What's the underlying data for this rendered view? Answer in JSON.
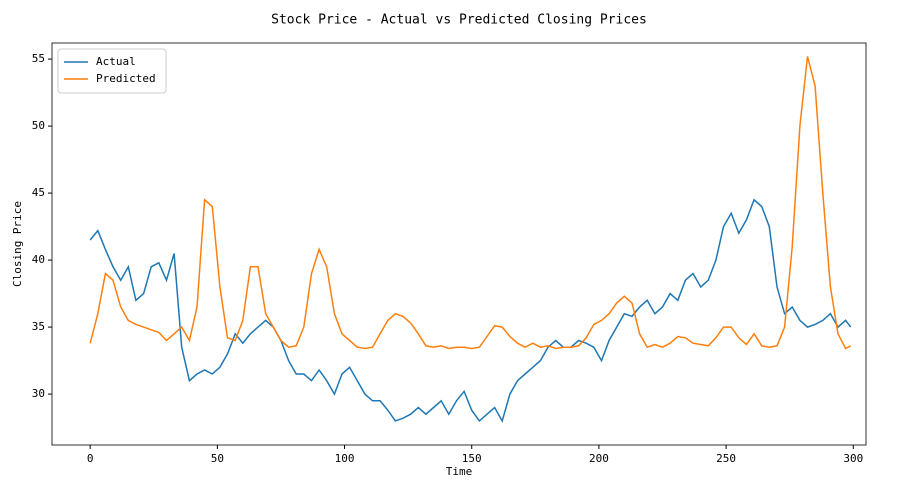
{
  "chart_data": {
    "type": "line",
    "title": "Stock Price - Actual vs Predicted Closing Prices",
    "xlabel": "Time",
    "ylabel": "Closing Price",
    "x": [
      0,
      3,
      6,
      9,
      12,
      15,
      18,
      21,
      24,
      27,
      30,
      33,
      36,
      39,
      42,
      45,
      48,
      51,
      54,
      57,
      60,
      63,
      66,
      69,
      72,
      75,
      78,
      81,
      84,
      87,
      90,
      93,
      96,
      99,
      102,
      105,
      108,
      111,
      114,
      117,
      120,
      123,
      126,
      129,
      132,
      135,
      138,
      141,
      144,
      147,
      150,
      153,
      156,
      159,
      162,
      165,
      168,
      171,
      174,
      177,
      180,
      183,
      186,
      189,
      192,
      195,
      198,
      201,
      204,
      207,
      210,
      213,
      216,
      219,
      222,
      225,
      228,
      231,
      234,
      237,
      240,
      243,
      246,
      249,
      252,
      255,
      258,
      261,
      264,
      267,
      270,
      273,
      276,
      279,
      282,
      285,
      288,
      291,
      294,
      297,
      299
    ],
    "series": [
      {
        "name": "Actual",
        "color": "#1f77b4",
        "values": [
          41.5,
          42.2,
          40.8,
          39.5,
          38.5,
          39.5,
          37,
          37.5,
          39.5,
          39.8,
          38.5,
          40.5,
          33.5,
          31,
          31.5,
          31.8,
          31.5,
          32,
          33,
          34.5,
          33.8,
          34.5,
          35,
          35.5,
          35,
          34,
          32.5,
          31.5,
          31.5,
          31,
          31.8,
          31,
          30,
          31.5,
          32,
          31,
          30,
          29.5,
          29.5,
          28.8,
          28,
          28.2,
          28.5,
          29,
          28.5,
          29,
          29.5,
          28.5,
          29.5,
          30.2,
          28.8,
          28,
          28.5,
          29,
          28,
          30,
          31,
          31.5,
          32,
          32.5,
          33.5,
          34,
          33.5,
          33.5,
          34,
          33.8,
          33.5,
          32.5,
          34,
          35,
          36,
          35.8,
          36.5,
          37,
          36,
          36.5,
          37.5,
          37,
          38.5,
          39,
          38,
          38.5,
          40,
          42.5,
          43.5,
          42,
          43,
          44.5,
          44,
          42.5,
          38,
          36,
          36.5,
          35.5,
          35,
          35.2,
          35.5,
          36,
          35,
          35.5,
          35
        ]
      },
      {
        "name": "Predicted",
        "color": "#ff7f0e",
        "values": [
          33.8,
          36,
          39,
          38.5,
          36.5,
          35.5,
          35.2,
          35,
          34.8,
          34.6,
          34,
          34.5,
          35,
          34,
          36.5,
          44.5,
          44,
          38,
          34.2,
          34,
          35.5,
          39.5,
          39.5,
          36,
          35,
          34,
          33.5,
          33.6,
          35,
          39,
          40.8,
          39.5,
          36,
          34.5,
          34,
          33.5,
          33.4,
          33.5,
          34.5,
          35.5,
          36,
          35.8,
          35.3,
          34.5,
          33.6,
          33.5,
          33.6,
          33.4,
          33.5,
          33.5,
          33.4,
          33.5,
          34.3,
          35.1,
          35,
          34.3,
          33.8,
          33.5,
          33.8,
          33.5,
          33.6,
          33.4,
          33.5,
          33.5,
          33.6,
          34.2,
          35.2,
          35.5,
          36,
          36.8,
          37.3,
          36.8,
          34.5,
          33.5,
          33.7,
          33.5,
          33.8,
          34.3,
          34.2,
          33.8,
          33.7,
          33.6,
          34.2,
          35,
          35,
          34.2,
          33.7,
          34.5,
          33.6,
          33.5,
          33.6,
          35,
          41,
          50,
          55.2,
          53,
          45,
          38,
          34.5,
          33.4,
          33.6
        ]
      }
    ],
    "xlim": [
      -15,
      305
    ],
    "ylim": [
      26.2,
      56.2
    ],
    "xticks": [
      0,
      50,
      100,
      150,
      200,
      250,
      300
    ],
    "yticks": [
      30,
      35,
      40,
      45,
      50,
      55
    ],
    "legend": "upper left"
  }
}
